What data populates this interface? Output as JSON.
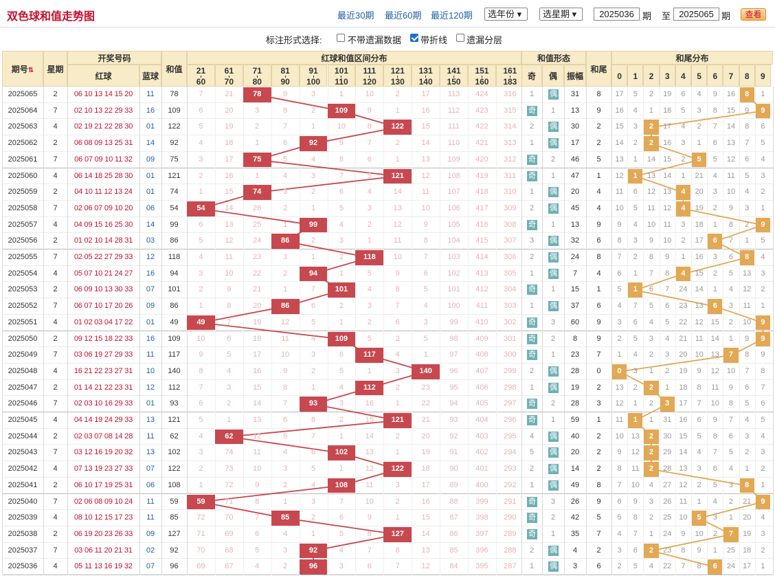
{
  "page": {
    "title": "双色球和值走势图"
  },
  "ranges": [
    {
      "label": "最近30期",
      "active": true
    },
    {
      "label": "最近60期",
      "active": false
    },
    {
      "label": "最近120期",
      "active": false
    }
  ],
  "filters": {
    "year_label": "选年份",
    "issue_label": "选星期",
    "from_issue": "2025036",
    "to_issue": "2025065",
    "period_label": "期",
    "to_label": "至",
    "query_label": "查看"
  },
  "options": {
    "prompt": "标注形式选择:",
    "items": [
      {
        "label": "不带遗漏数据",
        "checked": false
      },
      {
        "label": "带折线",
        "checked": true
      },
      {
        "label": "遗漏分层",
        "checked": false
      }
    ]
  },
  "headers": {
    "issue": "期号",
    "week": "星期",
    "numbers": "开奖号码",
    "red": "红球",
    "blue": "蓝球",
    "sum": "和值",
    "range_group": "红球和值区间分布",
    "form_group": "和值形态",
    "odd": "奇",
    "even": "偶",
    "amp": "振幅",
    "tail": "和尾",
    "tail_group": "和尾分布",
    "ranges": [
      [
        "21",
        "60"
      ],
      [
        "61",
        "70"
      ],
      [
        "71",
        "80"
      ],
      [
        "81",
        "90"
      ],
      [
        "91",
        "100"
      ],
      [
        "101",
        "110"
      ],
      [
        "111",
        "120"
      ],
      [
        "121",
        "130"
      ],
      [
        "131",
        "140"
      ],
      [
        "141",
        "150"
      ],
      [
        "151",
        "160"
      ],
      [
        "161",
        "183"
      ]
    ],
    "digits": [
      "0",
      "1",
      "2",
      "3",
      "4",
      "5",
      "6",
      "7",
      "8",
      "9"
    ]
  },
  "rows": [
    {
      "issue": "2025065",
      "week": "2",
      "red": "06 10 13 14 15 20",
      "blue": "11",
      "sum": 78,
      "zones": [
        "7",
        "21",
        "78",
        "9",
        "3",
        "1",
        "10",
        "2",
        "17",
        "113",
        "424",
        "316"
      ],
      "odd": "1",
      "even": "偶",
      "amp": "31",
      "tail": "8",
      "tails": [
        "17",
        "5",
        "2",
        "19",
        "6",
        "4",
        "9",
        "16",
        "8",
        "1"
      ]
    },
    {
      "issue": "2025064",
      "week": "7",
      "red": "02 10 13 22 29 33",
      "blue": "16",
      "sum": 109,
      "zones": [
        "6",
        "20",
        "3",
        "8",
        "2",
        "109",
        "9",
        "1",
        "16",
        "112",
        "423",
        "315"
      ],
      "odd": "奇",
      "even": "1",
      "amp": "13",
      "tail": "9",
      "tails": [
        "16",
        "4",
        "1",
        "18",
        "5",
        "3",
        "8",
        "15",
        "9",
        "9"
      ]
    },
    {
      "issue": "2025063",
      "week": "4",
      "red": "02 19 21 22 28 30",
      "blue": "01",
      "sum": 122,
      "zones": [
        "5",
        "19",
        "2",
        "7",
        "1",
        "10",
        "8",
        "122",
        "15",
        "111",
        "422",
        "314"
      ],
      "odd": "2",
      "even": "偶",
      "amp": "30",
      "tail": "2",
      "tails": [
        "15",
        "3",
        "2",
        "17",
        "4",
        "2",
        "7",
        "14",
        "8",
        "6"
      ]
    },
    {
      "issue": "2025062",
      "week": "2",
      "red": "06 08 09 13 25 31",
      "blue": "14",
      "sum": 92,
      "zones": [
        "4",
        "18",
        "1",
        "6",
        "92",
        "9",
        "7",
        "2",
        "14",
        "110",
        "421",
        "313"
      ],
      "odd": "1",
      "even": "偶",
      "amp": "17",
      "tail": "2",
      "tails": [
        "14",
        "2",
        "2",
        "16",
        "3",
        "1",
        "6",
        "13",
        "7",
        "5"
      ]
    },
    {
      "issue": "2025061",
      "week": "7",
      "red": "06 07 09 10 11 32",
      "blue": "09",
      "sum": 75,
      "zones": [
        "3",
        "17",
        "75",
        "5",
        "4",
        "8",
        "6",
        "1",
        "13",
        "109",
        "420",
        "312"
      ],
      "odd": "奇",
      "even": "2",
      "amp": "46",
      "tail": "5",
      "tails": [
        "13",
        "1",
        "14",
        "15",
        "2",
        "5",
        "5",
        "12",
        "6",
        "4"
      ]
    },
    {
      "issue": "2025060",
      "week": "4",
      "red": "06 14 18 25 28 30",
      "blue": "01",
      "sum": 121,
      "zones": [
        "2",
        "16",
        "1",
        "4",
        "3",
        "7",
        "5",
        "121",
        "12",
        "108",
        "419",
        "311"
      ],
      "odd": "奇",
      "even": "1",
      "amp": "47",
      "tail": "1",
      "tails": [
        "12",
        "1",
        "13",
        "14",
        "1",
        "21",
        "4",
        "11",
        "5",
        "3"
      ]
    },
    {
      "issue": "2025059",
      "week": "2",
      "red": "04 10 11 12 13 24",
      "blue": "01",
      "sum": 74,
      "zones": [
        "1",
        "15",
        "74",
        "3",
        "2",
        "6",
        "4",
        "14",
        "11",
        "107",
        "418",
        "310"
      ],
      "odd": "1",
      "even": "偶",
      "amp": "20",
      "tail": "4",
      "tails": [
        "11",
        "6",
        "12",
        "13",
        "4",
        "20",
        "3",
        "10",
        "4",
        "2"
      ]
    },
    {
      "issue": "2025058",
      "week": "7",
      "red": "02 06 07 09 10 20",
      "blue": "06",
      "sum": 54,
      "zones": [
        "54",
        "14",
        "26",
        "2",
        "1",
        "5",
        "3",
        "13",
        "10",
        "106",
        "417",
        "309"
      ],
      "odd": "2",
      "even": "偶",
      "amp": "45",
      "tail": "4",
      "tails": [
        "10",
        "5",
        "11",
        "12",
        "4",
        "19",
        "2",
        "9",
        "3",
        "1"
      ]
    },
    {
      "issue": "2025057",
      "week": "4",
      "red": "04 09 15 16 25 30",
      "blue": "14",
      "sum": 99,
      "zones": [
        "6",
        "13",
        "25",
        "1",
        "99",
        "4",
        "2",
        "12",
        "9",
        "105",
        "416",
        "308"
      ],
      "odd": "奇",
      "even": "1",
      "amp": "13",
      "tail": "9",
      "tails": [
        "9",
        "4",
        "10",
        "11",
        "3",
        "18",
        "1",
        "8",
        "2",
        "9"
      ]
    },
    {
      "issue": "2025056",
      "week": "2",
      "red": "01 02 10 14 28 31",
      "blue": "03",
      "sum": 86,
      "zones": [
        "5",
        "12",
        "24",
        "86",
        "2",
        "3",
        "1",
        "11",
        "8",
        "104",
        "415",
        "307"
      ],
      "odd": "3",
      "even": "偶",
      "amp": "32",
      "tail": "6",
      "tails": [
        "8",
        "3",
        "9",
        "10",
        "2",
        "17",
        "6",
        "7",
        "1",
        "5"
      ]
    },
    {
      "issue": "2025055",
      "week": "7",
      "red": "02 05 22 27 29 33",
      "blue": "12",
      "sum": 118,
      "zones": [
        "4",
        "11",
        "23",
        "3",
        "1",
        "2",
        "118",
        "10",
        "7",
        "103",
        "414",
        "306"
      ],
      "odd": "2",
      "even": "偶",
      "amp": "24",
      "tail": "8",
      "tails": [
        "7",
        "2",
        "8",
        "9",
        "1",
        "16",
        "3",
        "6",
        "8",
        "4"
      ]
    },
    {
      "issue": "2025054",
      "week": "4",
      "red": "05 07 10 21 24 27",
      "blue": "16",
      "sum": 94,
      "zones": [
        "3",
        "10",
        "22",
        "2",
        "94",
        "1",
        "5",
        "9",
        "6",
        "102",
        "413",
        "305"
      ],
      "odd": "1",
      "even": "偶",
      "amp": "7",
      "tail": "4",
      "tails": [
        "6",
        "1",
        "7",
        "8",
        "4",
        "15",
        "2",
        "5",
        "13",
        "3"
      ]
    },
    {
      "issue": "2025053",
      "week": "2",
      "red": "06 09 10 13 30 33",
      "blue": "07",
      "sum": 101,
      "zones": [
        "2",
        "9",
        "21",
        "1",
        "7",
        "101",
        "4",
        "8",
        "5",
        "101",
        "412",
        "304"
      ],
      "odd": "奇",
      "even": "1",
      "amp": "15",
      "tail": "1",
      "tails": [
        "5",
        "1",
        "6",
        "7",
        "24",
        "14",
        "1",
        "4",
        "12",
        "2"
      ]
    },
    {
      "issue": "2025052",
      "week": "7",
      "red": "06 07 10 17 20 26",
      "blue": "09",
      "sum": 86,
      "zones": [
        "1",
        "8",
        "20",
        "86",
        "6",
        "2",
        "3",
        "7",
        "4",
        "100",
        "411",
        "303"
      ],
      "odd": "1",
      "even": "偶",
      "amp": "37",
      "tail": "6",
      "tails": [
        "4",
        "7",
        "5",
        "6",
        "23",
        "13",
        "6",
        "3",
        "11",
        "1"
      ]
    },
    {
      "issue": "2025051",
      "week": "4",
      "red": "01 02 03 04 17 22",
      "blue": "01",
      "sum": 49,
      "zones": [
        "49",
        "7",
        "19",
        "12",
        "5",
        "1",
        "2",
        "6",
        "3",
        "99",
        "410",
        "302"
      ],
      "odd": "奇",
      "even": "3",
      "amp": "60",
      "tail": "9",
      "tails": [
        "3",
        "6",
        "4",
        "5",
        "22",
        "12",
        "15",
        "2",
        "10",
        "9"
      ]
    },
    {
      "issue": "2025050",
      "week": "2",
      "red": "09 12 15 18 22 33",
      "blue": "16",
      "sum": 109,
      "zones": [
        "10",
        "6",
        "18",
        "11",
        "4",
        "109",
        "5",
        "2",
        "5",
        "98",
        "409",
        "301"
      ],
      "odd": "奇",
      "even": "2",
      "amp": "8",
      "tail": "9",
      "tails": [
        "2",
        "5",
        "3",
        "4",
        "21",
        "11",
        "14",
        "1",
        "9",
        "9"
      ]
    },
    {
      "issue": "2025049",
      "week": "7",
      "red": "03 06 19 27 29 33",
      "blue": "11",
      "sum": 117,
      "zones": [
        "9",
        "5",
        "17",
        "10",
        "3",
        "6",
        "117",
        "4",
        "1",
        "97",
        "408",
        "300"
      ],
      "odd": "奇",
      "even": "1",
      "amp": "23",
      "tail": "7",
      "tails": [
        "1",
        "4",
        "2",
        "3",
        "20",
        "10",
        "13",
        "7",
        "8",
        "9"
      ]
    },
    {
      "issue": "2025048",
      "week": "4",
      "red": "16 21 22 23 27 31",
      "blue": "10",
      "sum": 140,
      "zones": [
        "8",
        "4",
        "16",
        "9",
        "2",
        "5",
        "1",
        "3",
        "140",
        "96",
        "407",
        "299"
      ],
      "odd": "2",
      "even": "偶",
      "amp": "28",
      "tail": "0",
      "tails": [
        "0",
        "3",
        "1",
        "2",
        "19",
        "9",
        "12",
        "10",
        "7",
        "8"
      ]
    },
    {
      "issue": "2025047",
      "week": "2",
      "red": "01 14 21 22 23 31",
      "blue": "12",
      "sum": 112,
      "zones": [
        "7",
        "3",
        "15",
        "8",
        "1",
        "4",
        "112",
        "2",
        "23",
        "95",
        "406",
        "298"
      ],
      "odd": "1",
      "even": "偶",
      "amp": "19",
      "tail": "2",
      "tails": [
        "13",
        "2",
        "2",
        "1",
        "18",
        "8",
        "11",
        "9",
        "6",
        "7"
      ]
    },
    {
      "issue": "2025046",
      "week": "7",
      "red": "02 03 10 16 29 33",
      "blue": "01",
      "sum": 93,
      "zones": [
        "6",
        "2",
        "14",
        "7",
        "93",
        "3",
        "16",
        "1",
        "22",
        "94",
        "405",
        "297"
      ],
      "odd": "奇",
      "even": "2",
      "amp": "28",
      "tail": "3",
      "tails": [
        "12",
        "1",
        "2",
        "3",
        "17",
        "7",
        "10",
        "8",
        "5",
        "6"
      ]
    },
    {
      "issue": "2025045",
      "week": "4",
      "red": "04 14 19 24 29 33",
      "blue": "13",
      "sum": 121,
      "zones": [
        "5",
        "1",
        "13",
        "6",
        "8",
        "2",
        "15",
        "121",
        "21",
        "93",
        "404",
        "296"
      ],
      "odd": "奇",
      "even": "1",
      "amp": "59",
      "tail": "1",
      "tails": [
        "11",
        "1",
        "1",
        "31",
        "16",
        "6",
        "9",
        "7",
        "4",
        "5"
      ]
    },
    {
      "issue": "2025044",
      "week": "2",
      "red": "02 03 07 08 14 28",
      "blue": "11",
      "sum": 62,
      "zones": [
        "4",
        "62",
        "12",
        "5",
        "7",
        "1",
        "14",
        "2",
        "20",
        "92",
        "403",
        "295"
      ],
      "odd": "4",
      "even": "偶",
      "amp": "40",
      "tail": "2",
      "tails": [
        "10",
        "13",
        "2",
        "30",
        "15",
        "5",
        "8",
        "6",
        "3",
        "4"
      ]
    },
    {
      "issue": "2025043",
      "week": "7",
      "red": "03 12 16 19 20 32",
      "blue": "13",
      "sum": 102,
      "zones": [
        "3",
        "74",
        "11",
        "4",
        "6",
        "102",
        "13",
        "1",
        "19",
        "91",
        "402",
        "294"
      ],
      "odd": "5",
      "even": "偶",
      "amp": "20",
      "tail": "2",
      "tails": [
        "9",
        "12",
        "2",
        "29",
        "14",
        "4",
        "7",
        "5",
        "2",
        "3"
      ]
    },
    {
      "issue": "2025042",
      "week": "4",
      "red": "07 13 19 23 27 33",
      "blue": "07",
      "sum": 122,
      "zones": [
        "2",
        "73",
        "10",
        "3",
        "5",
        "1",
        "12",
        "122",
        "18",
        "90",
        "401",
        "293"
      ],
      "odd": "2",
      "even": "偶",
      "amp": "14",
      "tail": "2",
      "tails": [
        "8",
        "11",
        "2",
        "28",
        "13",
        "3",
        "6",
        "4",
        "1",
        "2"
      ]
    },
    {
      "issue": "2025041",
      "week": "2",
      "red": "06 10 17 19 25 31",
      "blue": "06",
      "sum": 108,
      "zones": [
        "1",
        "72",
        "9",
        "2",
        "4",
        "108",
        "11",
        "3",
        "17",
        "89",
        "400",
        "292"
      ],
      "odd": "1",
      "even": "偶",
      "amp": "49",
      "tail": "8",
      "tails": [
        "7",
        "10",
        "4",
        "27",
        "12",
        "2",
        "5",
        "3",
        "8",
        "1"
      ]
    },
    {
      "issue": "2025040",
      "week": "7",
      "red": "02 06 08 09 10 24",
      "blue": "11",
      "sum": 59,
      "zones": [
        "59",
        "71",
        "8",
        "1",
        "3",
        "7",
        "10",
        "2",
        "16",
        "88",
        "399",
        "291"
      ],
      "odd": "奇",
      "even": "3",
      "amp": "26",
      "tail": "9",
      "tails": [
        "6",
        "9",
        "3",
        "26",
        "11",
        "1",
        "4",
        "2",
        "21",
        "9"
      ]
    },
    {
      "issue": "2025039",
      "week": "4",
      "red": "08 10 12 15 17 23",
      "blue": "11",
      "sum": 85,
      "zones": [
        "72",
        "70",
        "7",
        "85",
        "2",
        "6",
        "9",
        "1",
        "15",
        "87",
        "398",
        "290"
      ],
      "odd": "奇",
      "even": "2",
      "amp": "42",
      "tail": "5",
      "tails": [
        "5",
        "8",
        "2",
        "25",
        "10",
        "5",
        "3",
        "1",
        "20",
        "4"
      ]
    },
    {
      "issue": "2025038",
      "week": "2",
      "red": "06 19 20 23 26 33",
      "blue": "09",
      "sum": 127,
      "zones": [
        "71",
        "69",
        "6",
        "4",
        "1",
        "5",
        "8",
        "127",
        "14",
        "86",
        "397",
        "289"
      ],
      "odd": "奇",
      "even": "1",
      "amp": "35",
      "tail": "7",
      "tails": [
        "4",
        "7",
        "1",
        "24",
        "9",
        "10",
        "2",
        "7",
        "19",
        "3"
      ]
    },
    {
      "issue": "2025037",
      "week": "7",
      "red": "03 06 11 20 21 31",
      "blue": "02",
      "sum": 92,
      "zones": [
        "70",
        "68",
        "5",
        "3",
        "92",
        "4",
        "7",
        "8",
        "13",
        "85",
        "396",
        "288"
      ],
      "odd": "2",
      "even": "偶",
      "amp": "4",
      "tail": "2",
      "tails": [
        "3",
        "6",
        "2",
        "23",
        "8",
        "9",
        "1",
        "25",
        "18",
        "2"
      ]
    },
    {
      "issue": "2025036",
      "week": "4",
      "red": "05 11 13 16 19 32",
      "blue": "07",
      "sum": 96,
      "zones": [
        "69",
        "67",
        "4",
        "2",
        "96",
        "3",
        "6",
        "7",
        "12",
        "84",
        "395",
        "287"
      ],
      "odd": "1",
      "even": "偶",
      "amp": "3",
      "tail": "6",
      "tails": [
        "2",
        "5",
        "4",
        "22",
        "7",
        "8",
        "6",
        "24",
        "17",
        "1"
      ]
    }
  ],
  "colors": {
    "red_ball": "#c8102e",
    "blue_ball": "#1f5fa8",
    "hit_box": "#c8484f",
    "tail_box": "#e2a853",
    "even_badge": "#6fb0b4",
    "odd_badge": "#6fb0b4",
    "miss_text": "#e6b3b3",
    "header_bg": "#f7ebc8"
  }
}
